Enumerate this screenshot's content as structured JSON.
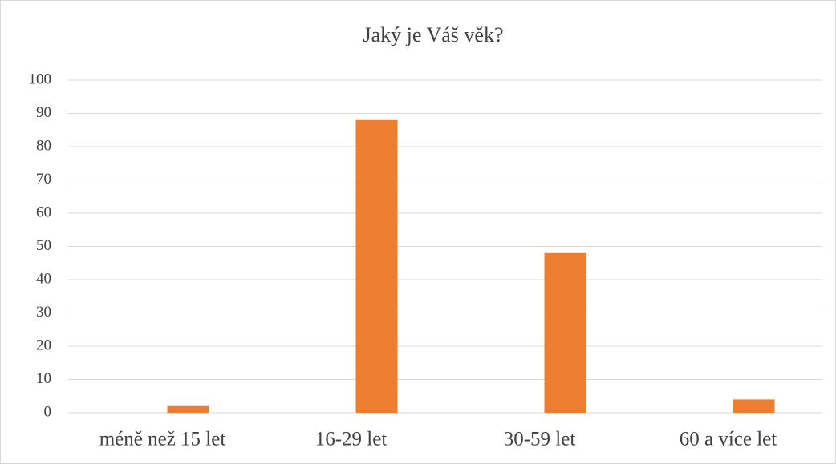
{
  "chart_data": {
    "type": "bar",
    "title": "Jaký je Váš věk?",
    "categories": [
      "méně než 15 let",
      "16-29 let",
      "30-59 let",
      "60 a více let"
    ],
    "values": [
      2,
      88,
      48,
      4
    ],
    "color": "#ed7d31",
    "ylim": [
      0,
      100
    ],
    "yticks": [
      0,
      10,
      20,
      30,
      40,
      50,
      60,
      70,
      80,
      90,
      100
    ],
    "grid": true
  }
}
